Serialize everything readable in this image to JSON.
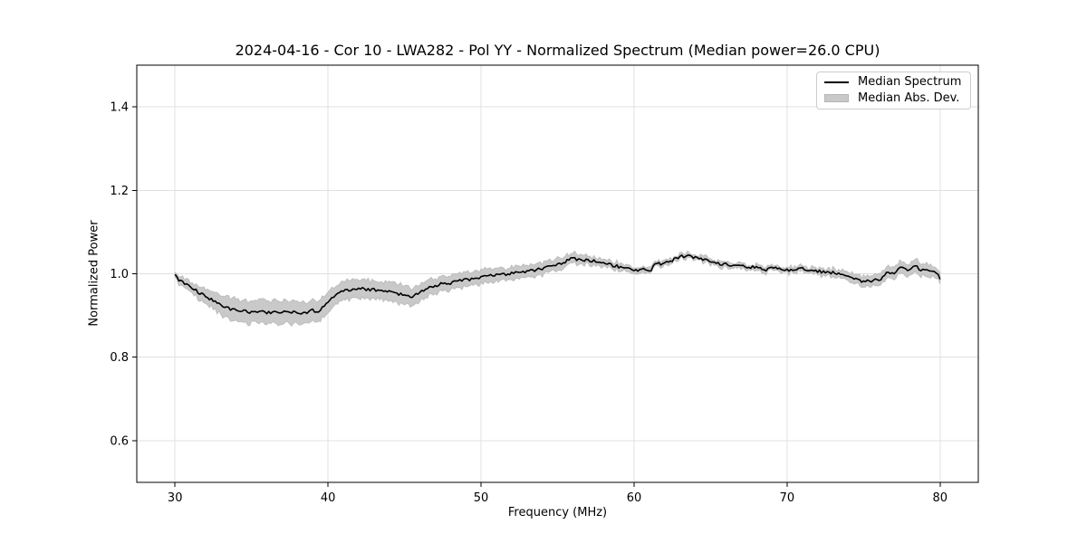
{
  "chart_data": {
    "type": "line",
    "title": "2024-04-16 - Cor 10 - LWA282 - Pol YY - Normalized Spectrum (Median power=26.0 CPU)",
    "xlabel": "Frequency (MHz)",
    "ylabel": "Normalized Power",
    "xlim": [
      27.5,
      82.5
    ],
    "ylim": [
      0.5,
      1.5
    ],
    "xticks": [
      30,
      40,
      50,
      60,
      70,
      80
    ],
    "xtick_labels": [
      "30",
      "40",
      "50",
      "60",
      "70",
      "80"
    ],
    "yticks": [
      0.6,
      0.8,
      1.0,
      1.2,
      1.4
    ],
    "ytick_labels": [
      "0.6",
      "0.8",
      "1.0",
      "1.2",
      "1.4"
    ],
    "grid": true,
    "colors": {
      "line": "#000000",
      "band_fill": "#c9c9c9",
      "band_edge": "#bdbdbd",
      "grid": "#e0e0e0",
      "spine": "#000000",
      "background": "#ffffff"
    },
    "legend": {
      "position": "upper right",
      "entries": [
        {
          "label": "Median Spectrum",
          "type": "line",
          "color": "#000000"
        },
        {
          "label": "Median Abs. Dev.",
          "type": "patch",
          "color": "#c9c9c9"
        }
      ]
    },
    "series": [
      {
        "name": "Median Spectrum",
        "type": "line",
        "color": "#000000",
        "points": [
          [
            30.0,
            0.995
          ],
          [
            30.3,
            0.984
          ],
          [
            30.6,
            0.977
          ],
          [
            31.0,
            0.969
          ],
          [
            31.5,
            0.957
          ],
          [
            32.0,
            0.945
          ],
          [
            32.5,
            0.936
          ],
          [
            33.0,
            0.925
          ],
          [
            33.5,
            0.917
          ],
          [
            34.0,
            0.913
          ],
          [
            34.5,
            0.911
          ],
          [
            35.0,
            0.908
          ],
          [
            35.5,
            0.909
          ],
          [
            36.0,
            0.907
          ],
          [
            36.5,
            0.909
          ],
          [
            37.0,
            0.908
          ],
          [
            37.5,
            0.907
          ],
          [
            38.0,
            0.908
          ],
          [
            38.5,
            0.906
          ],
          [
            39.0,
            0.912
          ],
          [
            39.3,
            0.909
          ],
          [
            39.7,
            0.921
          ],
          [
            40.0,
            0.932
          ],
          [
            40.5,
            0.949
          ],
          [
            41.0,
            0.958
          ],
          [
            41.5,
            0.962
          ],
          [
            42.0,
            0.964
          ],
          [
            42.5,
            0.963
          ],
          [
            43.0,
            0.962
          ],
          [
            43.5,
            0.96
          ],
          [
            44.0,
            0.957
          ],
          [
            44.5,
            0.952
          ],
          [
            45.0,
            0.95
          ],
          [
            45.5,
            0.945
          ],
          [
            45.8,
            0.95
          ],
          [
            46.1,
            0.958
          ],
          [
            46.5,
            0.966
          ],
          [
            47.0,
            0.97
          ],
          [
            47.5,
            0.977
          ],
          [
            47.9,
            0.974
          ],
          [
            48.2,
            0.981
          ],
          [
            48.8,
            0.984
          ],
          [
            49.4,
            0.988
          ],
          [
            50.0,
            0.991
          ],
          [
            50.5,
            0.995
          ],
          [
            51.0,
            0.997
          ],
          [
            51.5,
            0.998
          ],
          [
            52.0,
            1.001
          ],
          [
            52.5,
            1.003
          ],
          [
            53.0,
            1.006
          ],
          [
            53.5,
            1.009
          ],
          [
            54.0,
            1.013
          ],
          [
            54.5,
            1.017
          ],
          [
            55.0,
            1.023
          ],
          [
            55.5,
            1.028
          ],
          [
            55.9,
            1.038
          ],
          [
            56.2,
            1.035
          ],
          [
            56.5,
            1.033
          ],
          [
            57.0,
            1.032
          ],
          [
            57.5,
            1.03
          ],
          [
            58.0,
            1.024
          ],
          [
            58.5,
            1.021
          ],
          [
            59.0,
            1.017
          ],
          [
            59.5,
            1.014
          ],
          [
            60.0,
            1.011
          ],
          [
            60.3,
            1.008
          ],
          [
            60.6,
            1.01
          ],
          [
            60.9,
            1.006
          ],
          [
            61.1,
            1.006
          ],
          [
            61.2,
            1.021
          ],
          [
            61.7,
            1.024
          ],
          [
            62.3,
            1.028
          ],
          [
            62.9,
            1.04
          ],
          [
            63.4,
            1.043
          ],
          [
            63.8,
            1.041
          ],
          [
            64.1,
            1.038
          ],
          [
            64.7,
            1.033
          ],
          [
            65.3,
            1.028
          ],
          [
            65.6,
            1.022
          ],
          [
            65.9,
            1.025
          ],
          [
            66.5,
            1.019
          ],
          [
            66.8,
            1.022
          ],
          [
            67.1,
            1.018
          ],
          [
            67.7,
            1.016
          ],
          [
            68.3,
            1.014
          ],
          [
            68.6,
            1.008
          ],
          [
            68.9,
            1.014
          ],
          [
            69.4,
            1.012
          ],
          [
            70.0,
            1.009
          ],
          [
            70.6,
            1.011
          ],
          [
            70.9,
            1.014
          ],
          [
            71.2,
            1.011
          ],
          [
            71.8,
            1.008
          ],
          [
            72.4,
            1.004
          ],
          [
            73.0,
            1.003
          ],
          [
            73.6,
            0.997
          ],
          [
            74.2,
            0.992
          ],
          [
            74.5,
            0.986
          ],
          [
            74.8,
            0.982
          ],
          [
            75.1,
            0.984
          ],
          [
            75.4,
            0.981
          ],
          [
            75.7,
            0.986
          ],
          [
            76.0,
            0.984
          ],
          [
            76.2,
            0.984
          ],
          [
            76.3,
            0.996
          ],
          [
            76.6,
            1.003
          ],
          [
            76.9,
            1.0
          ],
          [
            77.2,
            1.01
          ],
          [
            77.5,
            1.017
          ],
          [
            77.8,
            1.01
          ],
          [
            78.1,
            1.014
          ],
          [
            78.4,
            1.019
          ],
          [
            78.7,
            1.01
          ],
          [
            79.0,
            1.012
          ],
          [
            79.3,
            1.007
          ],
          [
            79.6,
            1.003
          ],
          [
            79.8,
            1.0
          ],
          [
            80.0,
            0.989
          ]
        ]
      },
      {
        "name": "Median Abs. Dev.",
        "type": "band",
        "color": "#c9c9c9",
        "halfwidth_points": [
          [
            30.0,
            0.006
          ],
          [
            31.0,
            0.012
          ],
          [
            32.0,
            0.018
          ],
          [
            33.0,
            0.023
          ],
          [
            34.0,
            0.026
          ],
          [
            36.0,
            0.027
          ],
          [
            38.0,
            0.027
          ],
          [
            39.5,
            0.025
          ],
          [
            41.0,
            0.022
          ],
          [
            43.0,
            0.021
          ],
          [
            45.0,
            0.023
          ],
          [
            46.5,
            0.019
          ],
          [
            48.0,
            0.017
          ],
          [
            50.0,
            0.016
          ],
          [
            52.0,
            0.015
          ],
          [
            54.0,
            0.014
          ],
          [
            55.5,
            0.013
          ],
          [
            56.5,
            0.011
          ],
          [
            58.0,
            0.009
          ],
          [
            60.0,
            0.007
          ],
          [
            61.5,
            0.006
          ],
          [
            63.0,
            0.006
          ],
          [
            65.0,
            0.006
          ],
          [
            67.0,
            0.006
          ],
          [
            69.0,
            0.006
          ],
          [
            71.0,
            0.007
          ],
          [
            73.0,
            0.008
          ],
          [
            74.5,
            0.011
          ],
          [
            75.5,
            0.013
          ],
          [
            77.0,
            0.014
          ],
          [
            78.3,
            0.015
          ],
          [
            79.0,
            0.014
          ],
          [
            80.0,
            0.013
          ]
        ]
      }
    ],
    "render": {
      "x_start": 30,
      "x_end": 80,
      "x_step": 0.125,
      "noise_seed": 12345,
      "line_noise": 0.0035,
      "band_noise": 0.004
    }
  }
}
